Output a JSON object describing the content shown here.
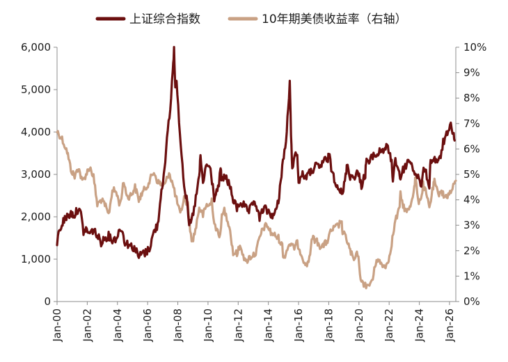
{
  "chart_data": {
    "type": "line",
    "title": "",
    "legend": {
      "position": "top"
    },
    "grid": false,
    "x": {
      "label": "",
      "range": [
        "2000-01",
        "2026-06"
      ],
      "ticks": [
        "Jan-00",
        "Jan-02",
        "Jan-04",
        "Jan-06",
        "Jan-08",
        "Jan-10",
        "Jan-12",
        "Jan-14",
        "Jan-16",
        "Jan-18",
        "Jan-20",
        "Jan-22",
        "Jan-24",
        "Jan-26"
      ]
    },
    "y_left": {
      "label": "",
      "range": [
        0,
        6000
      ],
      "ticks": [
        "0",
        "1,000",
        "2,000",
        "3,000",
        "4,000",
        "5,000",
        "6,000"
      ]
    },
    "y_right": {
      "label": "",
      "range": [
        0,
        10
      ],
      "ticks": [
        "0%",
        "1%",
        "2%",
        "3%",
        "4%",
        "5%",
        "6%",
        "7%",
        "8%",
        "9%",
        "10%"
      ]
    },
    "series": [
      {
        "name": "上证综合指数",
        "axis": "left",
        "color": "#6b0f0f",
        "points": [
          [
            "2000-01",
            1400
          ],
          [
            "2000-03",
            1700
          ],
          [
            "2000-06",
            1900
          ],
          [
            "2000-09",
            2000
          ],
          [
            "2000-12",
            2080
          ],
          [
            "2001-03",
            2050
          ],
          [
            "2001-06",
            2200
          ],
          [
            "2001-08",
            2050
          ],
          [
            "2001-10",
            1650
          ],
          [
            "2001-12",
            1700
          ],
          [
            "2002-03",
            1600
          ],
          [
            "2002-06",
            1700
          ],
          [
            "2002-09",
            1550
          ],
          [
            "2002-12",
            1400
          ],
          [
            "2003-03",
            1500
          ],
          [
            "2003-06",
            1550
          ],
          [
            "2003-09",
            1450
          ],
          [
            "2003-12",
            1500
          ],
          [
            "2004-04",
            1750
          ],
          [
            "2004-07",
            1400
          ],
          [
            "2004-10",
            1350
          ],
          [
            "2004-12",
            1300
          ],
          [
            "2005-03",
            1250
          ],
          [
            "2005-06",
            1050
          ],
          [
            "2005-09",
            1150
          ],
          [
            "2005-12",
            1150
          ],
          [
            "2006-03",
            1300
          ],
          [
            "2006-06",
            1650
          ],
          [
            "2006-09",
            1800
          ],
          [
            "2006-12",
            2650
          ],
          [
            "2007-03",
            3200
          ],
          [
            "2007-05",
            4100
          ],
          [
            "2007-07",
            4500
          ],
          [
            "2007-09",
            5500
          ],
          [
            "2007-10",
            5950
          ],
          [
            "2007-11",
            5000
          ],
          [
            "2007-12",
            5250
          ],
          [
            "2008-02",
            4300
          ],
          [
            "2008-04",
            3500
          ],
          [
            "2008-06",
            2750
          ],
          [
            "2008-08",
            2400
          ],
          [
            "2008-10",
            1800
          ],
          [
            "2008-12",
            1900
          ],
          [
            "2009-02",
            2200
          ],
          [
            "2009-04",
            2550
          ],
          [
            "2009-06",
            2950
          ],
          [
            "2009-07",
            3400
          ],
          [
            "2009-09",
            2800
          ],
          [
            "2009-12",
            3250
          ],
          [
            "2010-03",
            3100
          ],
          [
            "2010-06",
            2450
          ],
          [
            "2010-09",
            2650
          ],
          [
            "2010-11",
            3100
          ],
          [
            "2010-12",
            2850
          ],
          [
            "2011-03",
            2950
          ],
          [
            "2011-06",
            2750
          ],
          [
            "2011-09",
            2400
          ],
          [
            "2011-12",
            2200
          ],
          [
            "2012-03",
            2350
          ],
          [
            "2012-06",
            2250
          ],
          [
            "2012-09",
            2100
          ],
          [
            "2012-12",
            2250
          ],
          [
            "2013-02",
            2400
          ],
          [
            "2013-06",
            1950
          ],
          [
            "2013-09",
            2200
          ],
          [
            "2013-12",
            2150
          ],
          [
            "2014-03",
            2050
          ],
          [
            "2014-06",
            2050
          ],
          [
            "2014-09",
            2350
          ],
          [
            "2014-12",
            3200
          ],
          [
            "2015-03",
            3750
          ],
          [
            "2015-06",
            5150
          ],
          [
            "2015-07",
            3900
          ],
          [
            "2015-08",
            3200
          ],
          [
            "2015-10",
            3400
          ],
          [
            "2015-12",
            3550
          ],
          [
            "2016-01",
            2750
          ],
          [
            "2016-03",
            3000
          ],
          [
            "2016-06",
            2950
          ],
          [
            "2016-09",
            3000
          ],
          [
            "2016-12",
            3100
          ],
          [
            "2017-03",
            3200
          ],
          [
            "2017-06",
            3150
          ],
          [
            "2017-09",
            3350
          ],
          [
            "2017-12",
            3300
          ],
          [
            "2018-01",
            3500
          ],
          [
            "2018-03",
            3150
          ],
          [
            "2018-06",
            2850
          ],
          [
            "2018-09",
            2700
          ],
          [
            "2018-12",
            2500
          ],
          [
            "2019-03",
            3100
          ],
          [
            "2019-04",
            3250
          ],
          [
            "2019-06",
            2950
          ],
          [
            "2019-09",
            2950
          ],
          [
            "2019-12",
            3050
          ],
          [
            "2020-03",
            2750
          ],
          [
            "2020-06",
            3000
          ],
          [
            "2020-07",
            3400
          ],
          [
            "2020-09",
            3250
          ],
          [
            "2020-12",
            3450
          ],
          [
            "2021-03",
            3450
          ],
          [
            "2021-06",
            3550
          ],
          [
            "2021-09",
            3600
          ],
          [
            "2021-12",
            3650
          ],
          [
            "2022-03",
            3250
          ],
          [
            "2022-04",
            2900
          ],
          [
            "2022-06",
            3350
          ],
          [
            "2022-09",
            3050
          ],
          [
            "2022-10",
            2900
          ],
          [
            "2022-12",
            3100
          ],
          [
            "2023-03",
            3250
          ],
          [
            "2023-05",
            3350
          ],
          [
            "2023-08",
            3150
          ],
          [
            "2023-10",
            3000
          ],
          [
            "2023-12",
            2950
          ],
          [
            "2024-02",
            2700
          ],
          [
            "2024-05",
            3150
          ],
          [
            "2024-07",
            2950
          ],
          [
            "2024-09",
            2750
          ],
          [
            "2024-10",
            3350
          ],
          [
            "2024-12",
            3350
          ],
          [
            "2025-03",
            3350
          ],
          [
            "2025-04",
            3250
          ],
          [
            "2025-06",
            3450
          ],
          [
            "2025-08",
            3750
          ],
          [
            "2025-10",
            3900
          ],
          [
            "2025-12",
            3950
          ],
          [
            "2026-02",
            4150
          ],
          [
            "2026-04",
            4000
          ],
          [
            "2026-05",
            3800
          ]
        ]
      },
      {
        "name": "10年期美债收益率（右轴）",
        "axis": "right",
        "color": "#c9a184",
        "points": [
          [
            "2000-01",
            6.7
          ],
          [
            "2000-05",
            6.4
          ],
          [
            "2000-09",
            5.9
          ],
          [
            "2000-12",
            5.2
          ],
          [
            "2001-03",
            4.9
          ],
          [
            "2001-06",
            5.3
          ],
          [
            "2001-09",
            4.7
          ],
          [
            "2001-12",
            5.0
          ],
          [
            "2002-03",
            5.3
          ],
          [
            "2002-06",
            4.9
          ],
          [
            "2002-09",
            3.8
          ],
          [
            "2002-12",
            4.0
          ],
          [
            "2003-03",
            3.8
          ],
          [
            "2003-06",
            3.4
          ],
          [
            "2003-09",
            4.4
          ],
          [
            "2003-12",
            4.3
          ],
          [
            "2004-03",
            3.8
          ],
          [
            "2004-06",
            4.7
          ],
          [
            "2004-09",
            4.1
          ],
          [
            "2004-12",
            4.2
          ],
          [
            "2005-03",
            4.5
          ],
          [
            "2005-06",
            4.0
          ],
          [
            "2005-09",
            4.3
          ],
          [
            "2005-12",
            4.5
          ],
          [
            "2006-03",
            4.8
          ],
          [
            "2006-06",
            5.1
          ],
          [
            "2006-09",
            4.7
          ],
          [
            "2006-12",
            4.6
          ],
          [
            "2007-03",
            4.6
          ],
          [
            "2007-06",
            5.1
          ],
          [
            "2007-09",
            4.6
          ],
          [
            "2007-12",
            4.0
          ],
          [
            "2008-03",
            3.4
          ],
          [
            "2008-06",
            4.1
          ],
          [
            "2008-09",
            3.8
          ],
          [
            "2008-12",
            2.3
          ],
          [
            "2009-03",
            2.8
          ],
          [
            "2009-06",
            3.7
          ],
          [
            "2009-09",
            3.4
          ],
          [
            "2009-12",
            3.8
          ],
          [
            "2010-03",
            3.8
          ],
          [
            "2010-04",
            4.0
          ],
          [
            "2010-06",
            3.1
          ],
          [
            "2010-10",
            2.5
          ],
          [
            "2010-12",
            3.3
          ],
          [
            "2011-02",
            3.6
          ],
          [
            "2011-06",
            3.0
          ],
          [
            "2011-09",
            1.9
          ],
          [
            "2011-12",
            1.9
          ],
          [
            "2012-03",
            2.2
          ],
          [
            "2012-07",
            1.5
          ],
          [
            "2012-09",
            1.7
          ],
          [
            "2012-12",
            1.8
          ],
          [
            "2013-03",
            1.9
          ],
          [
            "2013-06",
            2.5
          ],
          [
            "2013-09",
            2.9
          ],
          [
            "2013-12",
            3.0
          ],
          [
            "2014-03",
            2.7
          ],
          [
            "2014-06",
            2.6
          ],
          [
            "2014-09",
            2.5
          ],
          [
            "2014-12",
            2.2
          ],
          [
            "2015-01",
            1.7
          ],
          [
            "2015-06",
            2.3
          ],
          [
            "2015-09",
            2.1
          ],
          [
            "2015-12",
            2.3
          ],
          [
            "2016-03",
            1.9
          ],
          [
            "2016-07",
            1.4
          ],
          [
            "2016-09",
            1.6
          ],
          [
            "2016-12",
            2.5
          ],
          [
            "2017-03",
            2.4
          ],
          [
            "2017-06",
            2.2
          ],
          [
            "2017-09",
            2.2
          ],
          [
            "2017-12",
            2.4
          ],
          [
            "2018-03",
            2.8
          ],
          [
            "2018-06",
            2.9
          ],
          [
            "2018-09",
            3.0
          ],
          [
            "2018-11",
            3.2
          ],
          [
            "2018-12",
            2.7
          ],
          [
            "2019-03",
            2.5
          ],
          [
            "2019-06",
            2.0
          ],
          [
            "2019-09",
            1.6
          ],
          [
            "2019-12",
            1.9
          ],
          [
            "2020-03",
            0.7
          ],
          [
            "2020-06",
            0.7
          ],
          [
            "2020-08",
            0.55
          ],
          [
            "2020-12",
            0.9
          ],
          [
            "2021-03",
            1.7
          ],
          [
            "2021-06",
            1.5
          ],
          [
            "2021-09",
            1.4
          ],
          [
            "2021-12",
            1.5
          ],
          [
            "2022-03",
            2.3
          ],
          [
            "2022-06",
            3.2
          ],
          [
            "2022-09",
            3.6
          ],
          [
            "2022-10",
            4.2
          ],
          [
            "2022-12",
            3.8
          ],
          [
            "2023-03",
            3.5
          ],
          [
            "2023-06",
            3.8
          ],
          [
            "2023-09",
            4.5
          ],
          [
            "2023-10",
            4.9
          ],
          [
            "2023-12",
            3.9
          ],
          [
            "2024-03",
            4.2
          ],
          [
            "2024-04",
            4.6
          ],
          [
            "2024-06",
            4.3
          ],
          [
            "2024-09",
            3.7
          ],
          [
            "2024-12",
            4.5
          ],
          [
            "2025-01",
            4.7
          ],
          [
            "2025-04",
            4.2
          ],
          [
            "2025-06",
            4.4
          ],
          [
            "2025-09",
            4.1
          ],
          [
            "2025-12",
            4.2
          ],
          [
            "2026-02",
            4.3
          ],
          [
            "2026-04",
            4.5
          ],
          [
            "2026-06",
            4.75
          ]
        ]
      }
    ]
  }
}
